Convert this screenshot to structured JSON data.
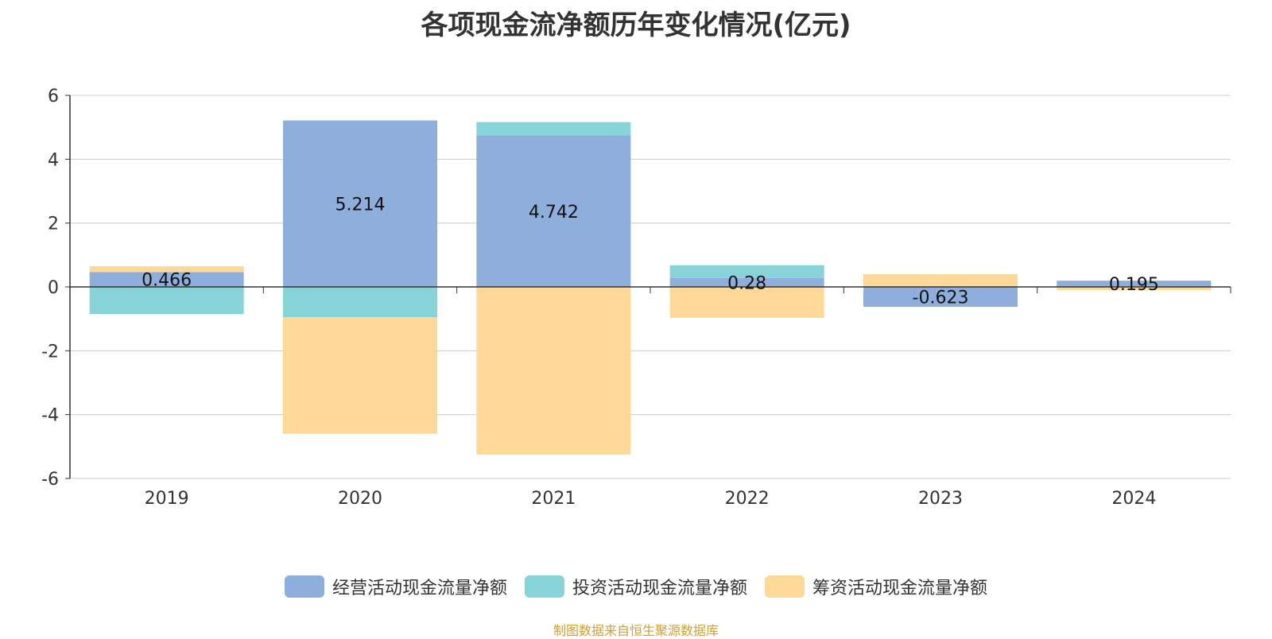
{
  "chart_data": {
    "type": "bar",
    "stacked": true,
    "title": "各项现金流净额历年变化情况(亿元)",
    "categories": [
      "2019",
      "2020",
      "2021",
      "2022",
      "2023",
      "2024"
    ],
    "series": [
      {
        "name": "经营活动现金流量净额",
        "color": "#8eaedb",
        "values": [
          0.466,
          5.214,
          4.742,
          0.28,
          -0.623,
          0.195
        ]
      },
      {
        "name": "投资活动现金流量净额",
        "color": "#86d4d8",
        "values": [
          -0.85,
          -0.95,
          0.42,
          0.4,
          0.0,
          0.0
        ]
      },
      {
        "name": "筹资活动现金流量净额",
        "color": "#fdd897",
        "values": [
          0.18,
          -3.65,
          -5.25,
          -0.97,
          0.4,
          -0.1
        ]
      }
    ],
    "data_labels": [
      "0.466",
      "5.214",
      "4.742",
      "0.28",
      "-0.623",
      "0.195"
    ],
    "ylim": [
      -6,
      6
    ],
    "yticks": [
      "6",
      "4",
      "2",
      "0",
      "-2",
      "-4",
      "-6"
    ],
    "ytick_values": [
      6,
      4,
      2,
      0,
      -2,
      -4,
      -6
    ],
    "grid": true,
    "legend_position": "bottom"
  },
  "source_note": "制图数据来自恒生聚源数据库"
}
